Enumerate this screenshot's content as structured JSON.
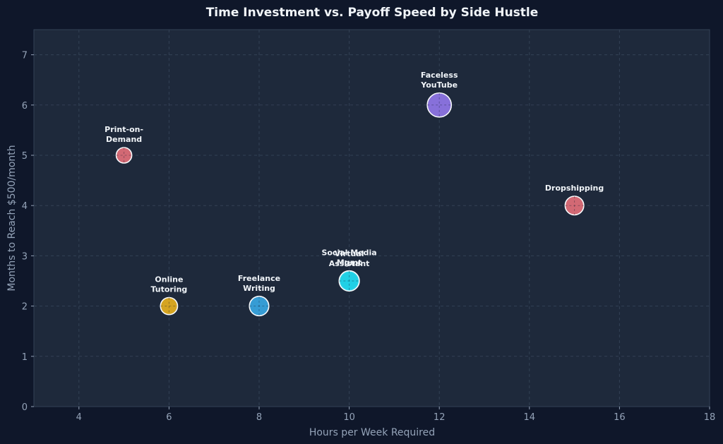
{
  "chart_data": {
    "type": "scatter",
    "title": "Time Investment vs. Payoff Speed by Side Hustle",
    "xlabel": "Hours per Week Required",
    "ylabel": "Months to Reach $500/month",
    "xlim": [
      3,
      18
    ],
    "ylim": [
      0,
      7.5
    ],
    "xticks": [
      4,
      6,
      8,
      10,
      12,
      14,
      16,
      18
    ],
    "yticks": [
      0,
      1,
      2,
      3,
      4,
      5,
      6,
      7
    ],
    "grid": true,
    "points": [
      {
        "label": "Print-on-Demand",
        "label_lines": [
          "Print-on-",
          "Demand"
        ],
        "x": 5,
        "y": 5,
        "size": 1,
        "color": "#e5707b"
      },
      {
        "label": "Online Tutoring",
        "label_lines": [
          "Online",
          "Tutoring"
        ],
        "x": 6,
        "y": 2,
        "size": 1.1,
        "color": "#e9b11f"
      },
      {
        "label": "Freelance Writing",
        "label_lines": [
          "Freelance",
          "Writing"
        ],
        "x": 8,
        "y": 2,
        "size": 1.25,
        "color": "#38a8e5"
      },
      {
        "label": "Virtual Assistant",
        "label_lines": [
          "Virtual",
          "Assistant"
        ],
        "x": 10,
        "y": 2.5,
        "size": 1.2,
        "color": "#21c3dd"
      },
      {
        "label": "Social Media Mgmt",
        "label_lines": [
          "Social Media",
          "Mgmt"
        ],
        "x": 10,
        "y": 2.5,
        "size": 1.3,
        "color": "#21d3e8"
      },
      {
        "label": "Faceless YouTube",
        "label_lines": [
          "Faceless",
          "YouTube"
        ],
        "x": 12,
        "y": 6,
        "size": 1.55,
        "color": "#9278ec"
      },
      {
        "label": "Dropshipping",
        "label_lines": [
          "Dropshipping"
        ],
        "x": 15,
        "y": 4,
        "size": 1.2,
        "color": "#e5707b"
      }
    ]
  },
  "colors": {
    "page_background": "#0f172a",
    "plot_background": "#1e293b",
    "grid": "#334155",
    "text": "#f1f5f9",
    "muted": "#94a3b8"
  }
}
